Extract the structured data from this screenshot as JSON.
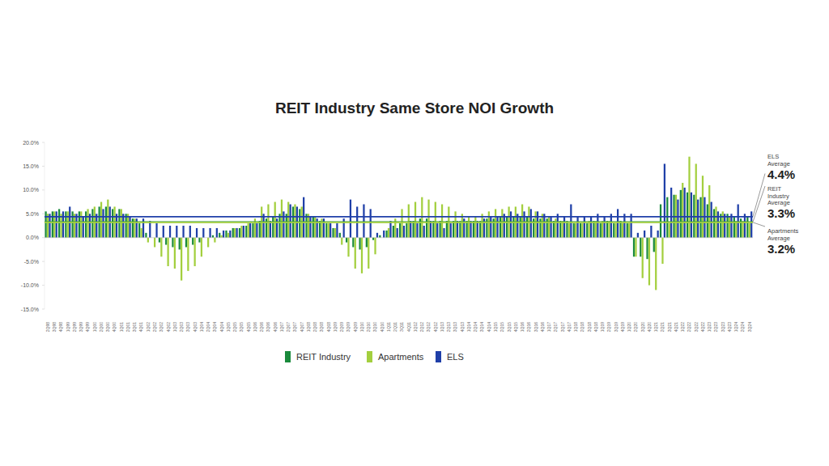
{
  "chart_data": {
    "type": "bar",
    "title": "REIT Industry Same Store NOI Growth",
    "categories": [
      "2Q98",
      "3Q98",
      "4Q98",
      "1Q99",
      "2Q99",
      "3Q99",
      "4Q99",
      "1Q00",
      "2Q00",
      "3Q00",
      "4Q00",
      "1Q01",
      "2Q01",
      "3Q01",
      "4Q01",
      "1Q02",
      "2Q02",
      "3Q02",
      "4Q02",
      "1Q03",
      "2Q03",
      "3Q03",
      "4Q03",
      "1Q04",
      "2Q04",
      "3Q04",
      "4Q04",
      "1Q05",
      "2Q05",
      "3Q05",
      "4Q05",
      "1Q06",
      "2Q06",
      "3Q06",
      "4Q06",
      "1Q07",
      "2Q07",
      "3Q07",
      "4Q07",
      "1Q08",
      "2Q08",
      "3Q08",
      "4Q08",
      "1Q09",
      "2Q09",
      "3Q09",
      "4Q09",
      "1Q10",
      "2Q10",
      "3Q10",
      "4Q10",
      "1Q11",
      "2Q11",
      "3Q11",
      "4Q11",
      "1Q12",
      "2Q12",
      "3Q12",
      "4Q12",
      "1Q13",
      "2Q13",
      "3Q13",
      "4Q13",
      "1Q14",
      "2Q14",
      "3Q14",
      "4Q14",
      "1Q15",
      "2Q15",
      "3Q15",
      "4Q15",
      "1Q16",
      "2Q16",
      "3Q16",
      "4Q16",
      "1Q17",
      "2Q17",
      "3Q17",
      "4Q17",
      "1Q18",
      "2Q18",
      "3Q18",
      "4Q18",
      "1Q19",
      "2Q19",
      "3Q19",
      "4Q19",
      "1Q20",
      "2Q20",
      "3Q20",
      "4Q20",
      "1Q21",
      "2Q21",
      "3Q21",
      "4Q21",
      "1Q22",
      "2Q22",
      "3Q22",
      "4Q22",
      "1Q23",
      "2Q23",
      "3Q23",
      "4Q23",
      "1Q24",
      "2Q24",
      "3Q24"
    ],
    "series": [
      {
        "name": "REIT Industry",
        "color": "#1a8a3c",
        "values": [
          5.5,
          5.5,
          6,
          5.5,
          5.5,
          5.5,
          5.5,
          6,
          6.5,
          6.5,
          6,
          6,
          5,
          4,
          3,
          1,
          0,
          -1,
          -1.5,
          -2,
          -2.5,
          -2,
          -1.5,
          -1,
          0,
          0.5,
          1,
          1.5,
          2,
          2,
          2.5,
          3,
          3.5,
          4,
          4.5,
          5,
          5,
          6.5,
          6,
          5,
          4.5,
          3.5,
          3,
          2,
          1,
          -1,
          -2,
          -2.5,
          -2,
          -0.5,
          0.5,
          1.5,
          2.5,
          3,
          3,
          3.5,
          4,
          4,
          3.5,
          3.5,
          3.5,
          3.5,
          3.5,
          3.5,
          3.5,
          3.5,
          4,
          4,
          4.5,
          4.5,
          4.5,
          4.5,
          4.5,
          4,
          4,
          4,
          3.5,
          3.5,
          3.5,
          3,
          3,
          3,
          3.5,
          3,
          3.5,
          3,
          3.5,
          3,
          -4,
          -4,
          -4.5,
          -3,
          7,
          8.5,
          9,
          10,
          9.5,
          9,
          8.5,
          7,
          6,
          5,
          5,
          4.5,
          4,
          4.5
        ]
      },
      {
        "name": "Apartments",
        "color": "#a3cf3e",
        "values": [
          5,
          5.5,
          5,
          5.5,
          5,
          5.5,
          6,
          6.5,
          7.5,
          8,
          6.5,
          6,
          5,
          4,
          2,
          -1,
          -2,
          -4,
          -6,
          -6.5,
          -9,
          -7,
          -6,
          -4,
          -2,
          -1,
          0.5,
          1,
          2,
          2.5,
          3,
          4,
          6.5,
          7,
          7.5,
          8,
          7.5,
          7,
          6.5,
          5,
          4.5,
          4,
          3,
          2,
          -1.5,
          -4,
          -6.5,
          -7.5,
          -6.5,
          -3.5,
          0,
          2,
          4,
          6,
          7,
          7.5,
          8.5,
          8,
          7.5,
          7,
          6.5,
          5.5,
          5,
          4.5,
          4.5,
          5,
          5.5,
          6,
          6,
          6.5,
          6.5,
          7,
          6.5,
          5.5,
          5,
          4.5,
          4,
          3.5,
          3,
          3,
          3,
          3.5,
          3.5,
          3.5,
          3.5,
          3,
          3,
          3,
          -4,
          -8.5,
          -10,
          -11,
          -5.5,
          3,
          9,
          11.5,
          17,
          15.5,
          13,
          11,
          6.5,
          5.5,
          4.5,
          3.5,
          3.5,
          3
        ]
      },
      {
        "name": "ELS",
        "color": "#1f3fa8",
        "values": [
          5,
          5.5,
          5.5,
          6.5,
          5,
          4.5,
          5,
          5,
          6,
          6.5,
          5,
          5,
          4.5,
          4,
          4,
          3.5,
          3,
          2.5,
          2.5,
          2.5,
          2.5,
          2.5,
          2,
          2,
          2,
          2,
          1.5,
          1.5,
          2,
          2.5,
          3,
          3,
          5,
          3.5,
          4,
          5.5,
          7,
          6.5,
          8.5,
          4.5,
          4,
          4,
          3,
          3,
          4,
          8,
          6.5,
          7,
          6,
          1,
          1.5,
          3.5,
          2,
          2.5,
          3.5,
          3,
          2.5,
          3.5,
          3,
          2,
          3,
          3.5,
          4,
          3.5,
          3.5,
          4,
          4.5,
          4.5,
          5,
          5.5,
          5,
          5.5,
          6,
          5.5,
          5,
          4.5,
          5,
          4.5,
          7,
          4.5,
          4.5,
          4.5,
          5,
          4.5,
          5,
          6,
          5,
          5,
          1,
          1.5,
          2.5,
          1.5,
          15.5,
          10.5,
          8,
          10.5,
          9.5,
          8,
          8.5,
          7.5,
          5.5,
          5,
          5,
          7,
          5,
          5.5
        ]
      }
    ],
    "averages": [
      {
        "name": "ELS Average",
        "value": 4.4,
        "value_label": "4.4%",
        "color": "#1f3fa8"
      },
      {
        "name": "REIT Industry Average",
        "value": 3.3,
        "value_label": "3.3%",
        "color": "#1a8a3c"
      },
      {
        "name": "Apartments Average",
        "value": 3.2,
        "value_label": "3.2%",
        "color": "#a3cf3e"
      }
    ],
    "ylim": [
      -15,
      20
    ],
    "yticks": [
      {
        "value": -15,
        "label": "-15.0%"
      },
      {
        "value": -10,
        "label": "-10.0%"
      },
      {
        "value": -5,
        "label": "-5.0%"
      },
      {
        "value": 0,
        "label": "0.0%"
      },
      {
        "value": 5,
        "label": "5.0%"
      },
      {
        "value": 10,
        "label": "10.0%"
      },
      {
        "value": 15,
        "label": "15.0%"
      },
      {
        "value": 20,
        "label": "20.0%"
      }
    ],
    "grid": false,
    "legend": "bottom"
  }
}
